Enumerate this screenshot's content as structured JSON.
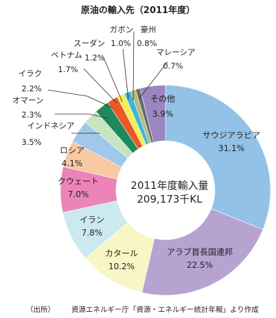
{
  "chart_data": {
    "type": "pie",
    "title": "原油の輸入先（2011年度）",
    "center_label": [
      "2011年度輸入量",
      "209,173千KL"
    ],
    "unit": "%",
    "slices": [
      {
        "label": "サウジアラビア",
        "value_text": "31.1%",
        "value": 31.1,
        "color": "#93c1e7"
      },
      {
        "label": "アラブ首長国連邦",
        "value_text": "22.5%",
        "value": 22.5,
        "color": "#b7a3d0"
      },
      {
        "label": "カタール",
        "value_text": "10.2%",
        "value": 10.2,
        "color": "#f8f6c6"
      },
      {
        "label": "イラン",
        "value_text": "7.8%",
        "value": 7.8,
        "color": "#cbe9ef"
      },
      {
        "label": "クウェート",
        "value_text": "7.0%",
        "value": 7.0,
        "color": "#ec84b8"
      },
      {
        "label": "ロシア",
        "value_text": "4.1%",
        "value": 4.1,
        "color": "#f8c9a3"
      },
      {
        "label": "インドネシア",
        "value_text": "3.5%",
        "value": 3.5,
        "color": "#9fc8ea"
      },
      {
        "label": "オマーン",
        "value_text": "2.3%",
        "value": 2.3,
        "color": "#c6e3c2"
      },
      {
        "label": "イラク",
        "value_text": "2.2%",
        "value": 2.2,
        "color": "#1e8a5a"
      },
      {
        "label": "ベトナム",
        "value_text": "1.7%",
        "value": 1.7,
        "color": "#e95a28"
      },
      {
        "label": "スーダン",
        "value_text": "1.2%",
        "value": 1.2,
        "color": "#f5ed55"
      },
      {
        "label": "ガボン",
        "value_text": "1.0%",
        "value": 1.0,
        "color": "#3fb5dc"
      },
      {
        "label": "豪州",
        "value_text": "0.8%",
        "value": 0.8,
        "color": "#b4bb7c"
      },
      {
        "label": "マレーシア",
        "value_text": "0.7%",
        "value": 0.7,
        "color": "#666a70"
      },
      {
        "label": "その他",
        "value_text": "3.9%",
        "value": 3.9,
        "color": "#9b86bf"
      }
    ]
  },
  "source": {
    "prefix": "（出所）",
    "text": "資源エネルギー庁「資源・エネルギー統計年報」より作成"
  }
}
